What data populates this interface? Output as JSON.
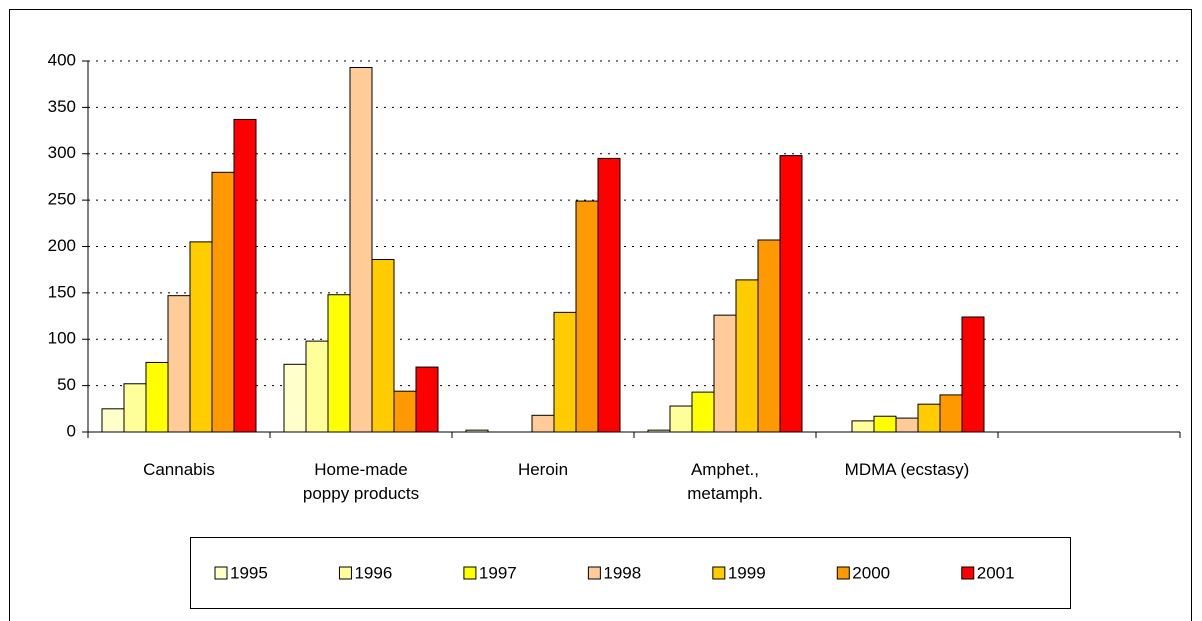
{
  "chart_data": {
    "type": "bar",
    "categories": [
      "Cannabis",
      "Home-made poppy products",
      "Heroin",
      "Amphet., metamph.",
      "MDMA (ecstasy)",
      null
    ],
    "series": [
      {
        "name": "1995",
        "color": "#ffffcc",
        "values": [
          25,
          73,
          2,
          2,
          0,
          null
        ]
      },
      {
        "name": "1996",
        "color": "#ffff99",
        "values": [
          52,
          98,
          0,
          28,
          12,
          null
        ]
      },
      {
        "name": "1997",
        "color": "#ffff00",
        "values": [
          75,
          148,
          0,
          43,
          17,
          null
        ]
      },
      {
        "name": "1998",
        "color": "#ffcc99",
        "values": [
          147,
          393,
          18,
          126,
          15,
          null
        ]
      },
      {
        "name": "1999",
        "color": "#ffcc00",
        "values": [
          205,
          186,
          129,
          164,
          30,
          null
        ]
      },
      {
        "name": "2000",
        "color": "#ff9900",
        "values": [
          280,
          44,
          249,
          207,
          40,
          null
        ]
      },
      {
        "name": "2001",
        "color": "#ff0000",
        "values": [
          337,
          70,
          295,
          298,
          124,
          null
        ]
      }
    ],
    "ylim": [
      0,
      400
    ],
    "yticks": [
      0,
      50,
      100,
      150,
      200,
      250,
      300,
      350,
      400
    ],
    "grid": true,
    "legend": "bottom"
  }
}
